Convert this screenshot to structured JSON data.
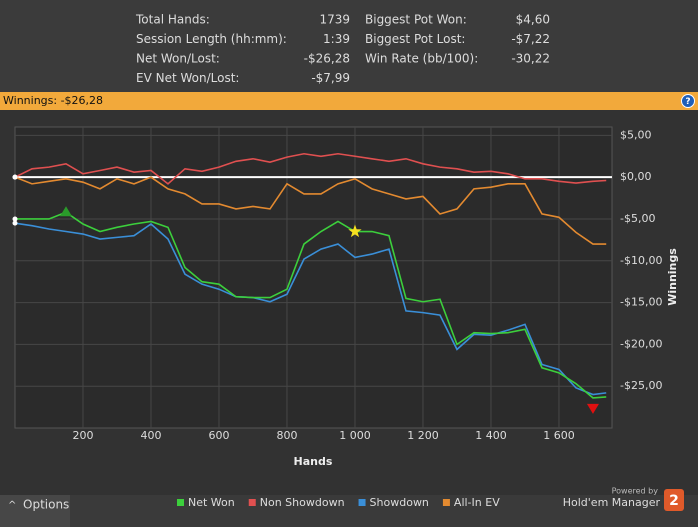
{
  "stats": {
    "left": [
      [
        "Total Hands:",
        "1739"
      ],
      [
        "Session Length (hh:mm):",
        "1:39"
      ],
      [
        "Net Won/Lost:",
        "-$26,28"
      ],
      [
        "EV Net Won/Lost:",
        "-$7,99"
      ]
    ],
    "right": [
      [
        "Biggest Pot Won:",
        "$4,60"
      ],
      [
        "Biggest Pot Lost:",
        "-$7,22"
      ],
      [
        "Win Rate (bb/100):",
        "-30,22"
      ]
    ]
  },
  "header": {
    "title": "Winnings: -$26,28"
  },
  "footer": {
    "options": "Options",
    "powered": "Powered by",
    "brand": "Hold'em Manager",
    "version": "2"
  },
  "chart_data": {
    "type": "line",
    "x_label": "Hands",
    "y_label": "Winnings",
    "x": [
      0,
      50,
      100,
      150,
      200,
      250,
      300,
      350,
      400,
      450,
      500,
      550,
      600,
      650,
      700,
      750,
      800,
      850,
      900,
      950,
      1000,
      1050,
      1100,
      1150,
      1200,
      1250,
      1300,
      1350,
      1400,
      1450,
      1500,
      1550,
      1600,
      1650,
      1700,
      1739
    ],
    "series": [
      {
        "name": "Net Won",
        "color": "#3ccf3c",
        "values": [
          -5,
          -5,
          -5,
          -4.2,
          -5.6,
          -6.5,
          -6,
          -5.6,
          -5.3,
          -6,
          -10.8,
          -12.5,
          -12.8,
          -14.3,
          -14.4,
          -14.4,
          -13.4,
          -8,
          -6.5,
          -5.3,
          -6.5,
          -6.5,
          -7,
          -14.5,
          -14.9,
          -14.6,
          -20,
          -18.6,
          -18.7,
          -18.6,
          -18.2,
          -22.8,
          -23.4,
          -24.7,
          -26.4,
          -26.28
        ]
      },
      {
        "name": "Non Showdown",
        "color": "#e05050",
        "values": [
          0,
          1,
          1.2,
          1.6,
          0.4,
          0.8,
          1.2,
          0.6,
          0.8,
          -0.8,
          1,
          0.7,
          1.2,
          1.9,
          2.2,
          1.8,
          2.4,
          2.8,
          2.5,
          2.8,
          2.5,
          2.2,
          1.9,
          2.2,
          1.6,
          1.2,
          1,
          0.6,
          0.7,
          0.4,
          -0.2,
          -0.2,
          -0.5,
          -0.7,
          -0.5,
          -0.4
        ]
      },
      {
        "name": "Showdown",
        "color": "#3a8fd8",
        "values": [
          -5.5,
          -5.8,
          -6.2,
          -6.5,
          -6.8,
          -7.4,
          -7.2,
          -7,
          -5.6,
          -7.4,
          -11.6,
          -12.8,
          -13.4,
          -14.3,
          -14.4,
          -14.9,
          -14,
          -9.8,
          -8.6,
          -8,
          -9.6,
          -9.2,
          -8.6,
          -16,
          -16.2,
          -16.5,
          -20.6,
          -18.8,
          -18.9,
          -18.3,
          -17.6,
          -22.4,
          -23,
          -25.2,
          -26,
          -25.8
        ]
      },
      {
        "name": "All-In EV",
        "color": "#e38a30",
        "values": [
          0,
          -0.8,
          -0.5,
          -0.2,
          -0.6,
          -1.4,
          -0.2,
          -0.8,
          0,
          -1.4,
          -2,
          -3.2,
          -3.2,
          -3.8,
          -3.5,
          -3.8,
          -0.8,
          -2,
          -2,
          -0.8,
          -0.2,
          -1.4,
          -2,
          -2.6,
          -2.3,
          -4.4,
          -3.8,
          -1.4,
          -1.2,
          -0.8,
          -0.8,
          -4.4,
          -4.8,
          -6.6,
          -8,
          -8
        ]
      }
    ],
    "xlim": [
      0,
      1756
    ],
    "ylim": [
      -30,
      6
    ],
    "xticks": [
      200,
      400,
      600,
      800,
      {
        "value": 1000,
        "label": "1 000"
      },
      {
        "value": 1200,
        "label": "1 200"
      },
      {
        "value": 1400,
        "label": "1 400"
      },
      {
        "value": 1600,
        "label": "1 600"
      }
    ],
    "yticks": [
      {
        "value": 5,
        "label": "$5,00"
      },
      {
        "value": 0,
        "label": "$0,00"
      },
      {
        "value": -5,
        "label": "-$5,00"
      },
      {
        "value": -10,
        "label": "-$10,00"
      },
      {
        "value": -15,
        "label": "-$15,00"
      },
      {
        "value": -20,
        "label": "-$20,00"
      },
      {
        "value": -25,
        "label": "-$25,00"
      }
    ],
    "grid": true
  }
}
